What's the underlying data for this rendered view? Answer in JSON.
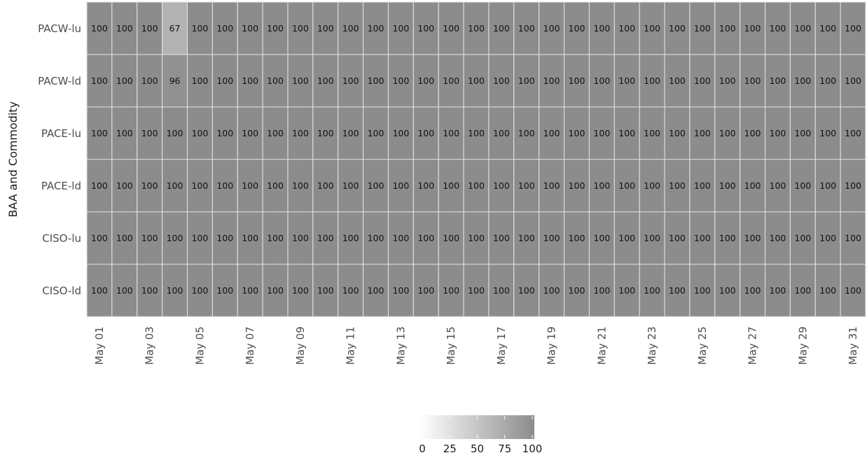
{
  "chart_data": {
    "type": "heatmap",
    "ylabel": "BAA and Commodity",
    "xlabel": "",
    "title": "",
    "rows": [
      "PACW-lu",
      "PACW-ld",
      "PACE-lu",
      "PACE-ld",
      "CISO-lu",
      "CISO-ld"
    ],
    "columns": [
      "May 01",
      "May 02",
      "May 03",
      "May 04",
      "May 05",
      "May 06",
      "May 07",
      "May 08",
      "May 09",
      "May 10",
      "May 11",
      "May 12",
      "May 13",
      "May 14",
      "May 15",
      "May 16",
      "May 17",
      "May 18",
      "May 19",
      "May 20",
      "May 21",
      "May 22",
      "May 23",
      "May 24",
      "May 25",
      "May 26",
      "May 27",
      "May 28",
      "May 29",
      "May 30",
      "May 31"
    ],
    "x_tick_labels": [
      "May 01",
      "May 03",
      "May 05",
      "May 07",
      "May 09",
      "May 11",
      "May 13",
      "May 15",
      "May 17",
      "May 19",
      "May 21",
      "May 23",
      "May 25",
      "May 27",
      "May 29",
      "May 31"
    ],
    "values": [
      [
        100,
        100,
        100,
        67,
        100,
        100,
        100,
        100,
        100,
        100,
        100,
        100,
        100,
        100,
        100,
        100,
        100,
        100,
        100,
        100,
        100,
        100,
        100,
        100,
        100,
        100,
        100,
        100,
        100,
        100,
        100
      ],
      [
        100,
        100,
        100,
        96,
        100,
        100,
        100,
        100,
        100,
        100,
        100,
        100,
        100,
        100,
        100,
        100,
        100,
        100,
        100,
        100,
        100,
        100,
        100,
        100,
        100,
        100,
        100,
        100,
        100,
        100,
        100
      ],
      [
        100,
        100,
        100,
        100,
        100,
        100,
        100,
        100,
        100,
        100,
        100,
        100,
        100,
        100,
        100,
        100,
        100,
        100,
        100,
        100,
        100,
        100,
        100,
        100,
        100,
        100,
        100,
        100,
        100,
        100,
        100
      ],
      [
        100,
        100,
        100,
        100,
        100,
        100,
        100,
        100,
        100,
        100,
        100,
        100,
        100,
        100,
        100,
        100,
        100,
        100,
        100,
        100,
        100,
        100,
        100,
        100,
        100,
        100,
        100,
        100,
        100,
        100,
        100
      ],
      [
        100,
        100,
        100,
        100,
        100,
        100,
        100,
        100,
        100,
        100,
        100,
        100,
        100,
        100,
        100,
        100,
        100,
        100,
        100,
        100,
        100,
        100,
        100,
        100,
        100,
        100,
        100,
        100,
        100,
        100,
        100
      ],
      [
        100,
        100,
        100,
        100,
        100,
        100,
        100,
        100,
        100,
        100,
        100,
        100,
        100,
        100,
        100,
        100,
        100,
        100,
        100,
        100,
        100,
        100,
        100,
        100,
        100,
        100,
        100,
        100,
        100,
        100,
        100
      ]
    ],
    "color_scale": {
      "low": "#ffffff",
      "high": "#8c8c8c",
      "range": [
        0,
        100
      ]
    },
    "legend": {
      "position": "bottom",
      "ticks": [
        "0",
        "25",
        "50",
        "75",
        "100"
      ]
    },
    "grid": true
  }
}
